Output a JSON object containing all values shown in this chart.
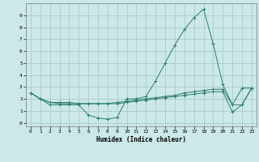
{
  "title": "",
  "xlabel": "Humidex (Indice chaleur)",
  "bg_color": "#cce8e8",
  "grid_color": "#aacccc",
  "line_color": "#2d7d6e",
  "xlim": [
    -0.5,
    23.5
  ],
  "ylim": [
    -0.3,
    10.0
  ],
  "xticks": [
    0,
    1,
    2,
    3,
    4,
    5,
    6,
    7,
    8,
    9,
    10,
    11,
    12,
    13,
    14,
    15,
    16,
    17,
    18,
    19,
    20,
    21,
    22,
    23
  ],
  "yticks": [
    0,
    1,
    2,
    3,
    4,
    5,
    6,
    7,
    8,
    9
  ],
  "series1_x": [
    0,
    1,
    2,
    3,
    4,
    5,
    6,
    7,
    8,
    9,
    10,
    11,
    12,
    13,
    14,
    15,
    16,
    17,
    18,
    19,
    20,
    21,
    22,
    23
  ],
  "series1_y": [
    2.5,
    2.0,
    1.5,
    1.5,
    1.5,
    1.5,
    0.65,
    0.4,
    0.3,
    0.45,
    2.0,
    2.0,
    2.2,
    3.5,
    5.0,
    6.5,
    7.8,
    8.8,
    9.5,
    6.6,
    3.2,
    1.5,
    1.5,
    2.9
  ],
  "series2_x": [
    0,
    1,
    2,
    3,
    4,
    5,
    6,
    7,
    8,
    9,
    10,
    11,
    12,
    13,
    14,
    15,
    16,
    17,
    18,
    19,
    20,
    21,
    22,
    23
  ],
  "series2_y": [
    2.5,
    2.0,
    1.7,
    1.7,
    1.7,
    1.6,
    1.6,
    1.6,
    1.6,
    1.7,
    1.8,
    1.9,
    2.0,
    2.1,
    2.2,
    2.3,
    2.5,
    2.6,
    2.7,
    2.8,
    2.8,
    1.5,
    2.9,
    2.9
  ],
  "series3_x": [
    0,
    1,
    2,
    3,
    4,
    5,
    6,
    7,
    8,
    9,
    10,
    11,
    12,
    13,
    14,
    15,
    16,
    17,
    18,
    19,
    20,
    21,
    22,
    23
  ],
  "series3_y": [
    2.5,
    2.0,
    1.7,
    1.6,
    1.6,
    1.6,
    1.6,
    1.6,
    1.6,
    1.6,
    1.7,
    1.8,
    1.9,
    2.0,
    2.1,
    2.2,
    2.3,
    2.4,
    2.5,
    2.6,
    2.6,
    0.9,
    1.5,
    2.9
  ]
}
